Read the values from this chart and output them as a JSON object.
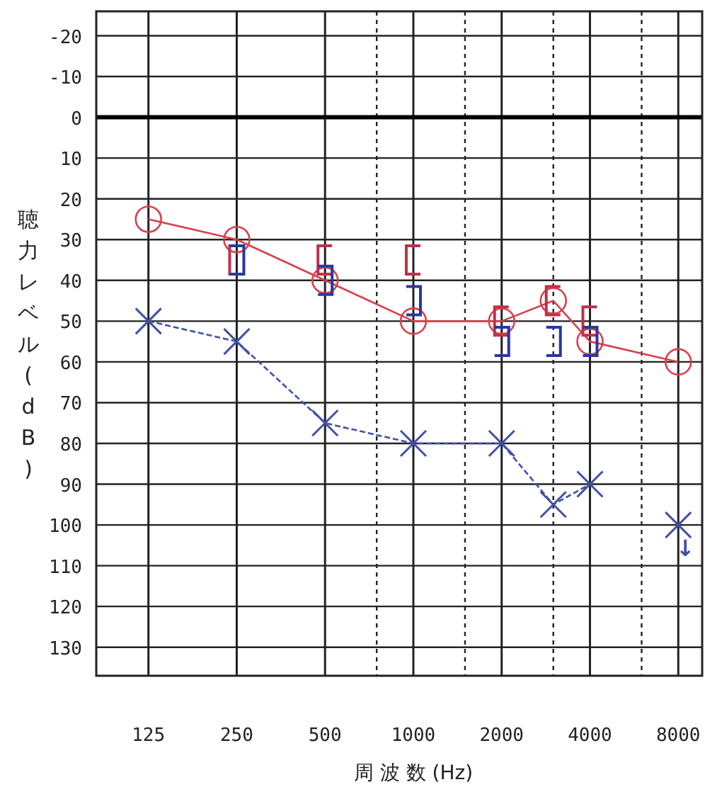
{
  "chart_data": {
    "type": "line",
    "xlabel": "周 波 数 (Hz)",
    "ylabel": "聴力レベル(dB)",
    "log": "x",
    "grid": true,
    "xlim": [
      83,
      9650
    ],
    "ylim": [
      137,
      -26
    ],
    "xticks": [
      125,
      250,
      500,
      {
        "value": 750,
        "label": null
      },
      1000,
      {
        "value": 1500,
        "label": null
      },
      2000,
      {
        "value": 3000,
        "label": null
      },
      4000,
      {
        "value": 6000,
        "label": null
      },
      8000
    ],
    "yticks": [
      -20,
      -10,
      0,
      10,
      20,
      30,
      40,
      50,
      60,
      70,
      80,
      90,
      100,
      110,
      120,
      130
    ],
    "ref_lines": [
      {
        "axis": "y",
        "value": 0,
        "color": "#000000"
      }
    ],
    "annotations": [
      {
        "text": "↓",
        "x": 8000,
        "y": 100
      }
    ],
    "series": [
      {
        "type": "line",
        "color": "#d8404c",
        "marker": "circle",
        "line_style": "solid",
        "x": [
          125,
          250,
          500,
          1000,
          2000,
          3000,
          4000,
          8000
        ],
        "values": [
          25,
          30,
          40,
          50,
          50,
          45,
          55,
          60
        ]
      },
      {
        "type": "line",
        "color": "#4050a8",
        "marker": "cross",
        "line_style": "dashed",
        "x": [
          125,
          250,
          500,
          1000,
          2000,
          3000,
          4000
        ],
        "values": [
          50,
          55,
          75,
          80,
          80,
          95,
          90
        ]
      },
      {
        "type": "scatter",
        "color": "#4050a8",
        "marker": "cross",
        "x": [
          8000
        ],
        "values": [
          100
        ]
      },
      {
        "type": "scatter",
        "color": "#c0304a",
        "x": [
          250,
          500,
          1000,
          2000,
          3000,
          4000
        ],
        "values": [
          35,
          35,
          35,
          50,
          45,
          50
        ]
      },
      {
        "type": "scatter",
        "color": "#2838a0",
        "x": [
          250,
          500,
          1000,
          2000,
          3000,
          4000
        ],
        "values": [
          35,
          40,
          45,
          55,
          55,
          55
        ]
      }
    ]
  }
}
